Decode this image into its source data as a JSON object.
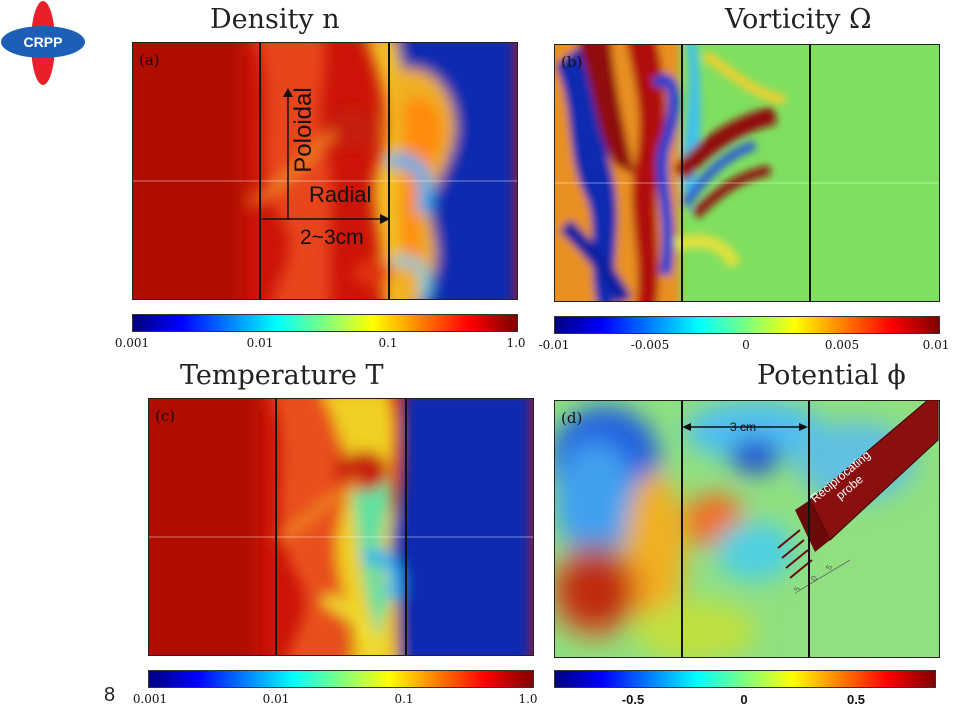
{
  "logo": {
    "text": "CRPP",
    "colors": {
      "petal": "#e8202a",
      "disc": "#1d5fb8"
    }
  },
  "page_number": "8",
  "panels": [
    {
      "title": "Density n",
      "label": "(a)",
      "colormap": "jet",
      "colorbar": {
        "ticks": [
          "0.001",
          "0.01",
          "0.1",
          "1.0"
        ],
        "scale": "log"
      }
    },
    {
      "title": "Vorticity Ω",
      "label": "(b)",
      "colormap": "jet",
      "colorbar": {
        "ticks": [
          "-0.01",
          "-0.005",
          "0",
          "0.005",
          "0.01"
        ],
        "scale": "linear"
      }
    },
    {
      "title": "Temperature T",
      "label": "(c)",
      "colormap": "jet",
      "colorbar": {
        "ticks": [
          "0.001",
          "0.01",
          "0.1",
          "1.0"
        ],
        "scale": "log"
      }
    },
    {
      "title": "Potential ϕ",
      "label": "(d)",
      "colormap": "jet",
      "colorbar": {
        "ticks": [
          "-0.5",
          "0",
          "0.5"
        ],
        "scale": "linear"
      }
    }
  ],
  "annotations": {
    "poloidal": "Poloidal",
    "radial": "Radial",
    "distance_a": "2~3cm",
    "distance_d": "3 cm",
    "probe": "Reciprocating probe",
    "probe_ticks": [
      "-5",
      "0",
      "5"
    ]
  }
}
